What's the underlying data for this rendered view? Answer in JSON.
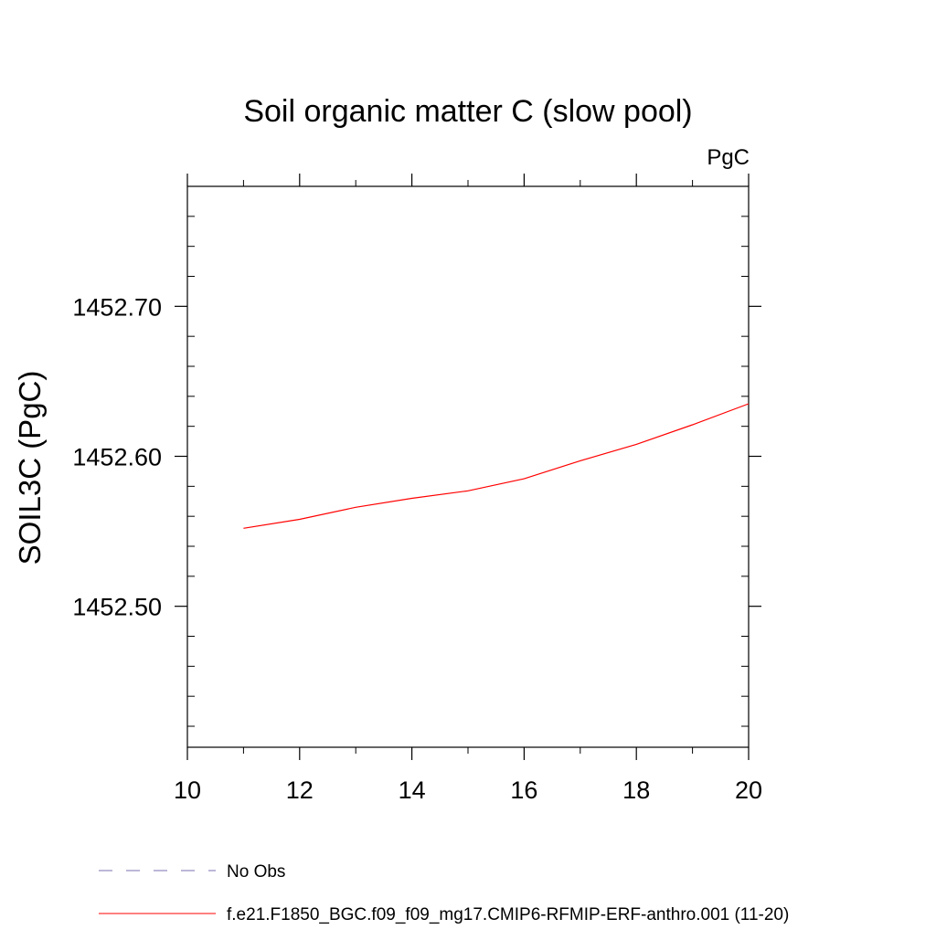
{
  "chart_data": {
    "type": "line",
    "title": "Soil organic matter C (slow pool)",
    "units_label": "PgC",
    "xlabel": "",
    "ylabel": "SOIL3C  (PgC)",
    "xlim": [
      10,
      20
    ],
    "ylim": [
      1452.406,
      1452.78
    ],
    "x_ticks": [
      10,
      12,
      14,
      16,
      18,
      20
    ],
    "x_tick_labels": [
      "10",
      "12",
      "14",
      "16",
      "18",
      "20"
    ],
    "y_ticks": [
      1452.5,
      1452.6,
      1452.7
    ],
    "y_tick_labels": [
      "1452.50",
      "1452.60",
      "1452.70"
    ],
    "grid": false,
    "series": [
      {
        "name": "f.e21.F1850_BGC.f09_f09_mg17.CMIP6-RFMIP-ERF-anthro.001 (11-20)",
        "color": "#ff0000",
        "x": [
          11,
          12,
          13,
          14,
          15,
          16,
          17,
          18,
          19,
          20
        ],
        "values": [
          1452.552,
          1452.558,
          1452.566,
          1452.572,
          1452.577,
          1452.585,
          1452.597,
          1452.608,
          1452.621,
          1452.635
        ]
      }
    ],
    "legend": {
      "placement": "bottom",
      "entries": [
        {
          "label": "No Obs",
          "color": "#7a6fb0",
          "style": "dashed"
        },
        {
          "label": "f.e21.F1850_BGC.f09_f09_mg17.CMIP6-RFMIP-ERF-anthro.001 (11-20)",
          "color": "#ff0000",
          "style": "solid"
        }
      ]
    }
  }
}
